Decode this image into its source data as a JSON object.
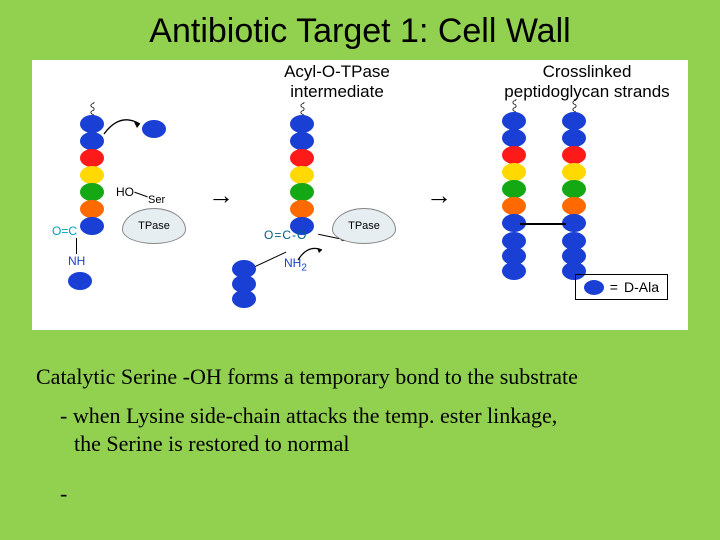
{
  "slide": {
    "background_color": "#92d050",
    "title": "Antibiotic Target 1: Cell Wall",
    "title_color": "#000000",
    "diagram_bg": "#ffffff"
  },
  "labels": {
    "panel2_line1": "Acyl-O-TPase",
    "panel2_line2": "intermediate",
    "panel3_line1": "Crosslinked",
    "panel3_line2": "peptidoglycan strands",
    "ser": "Ser",
    "ho": "HO",
    "tpase": "TPase",
    "nh": "NH",
    "nh2": "NH",
    "sub2": "2",
    "oco": "O=C-O",
    "oc": "O=C",
    "legend_eq": "=",
    "legend_txt": "D-Ala"
  },
  "text": {
    "line1": "Catalytic Serine -OH forms a temporary bond to the substrate",
    "line2a": "- when Lysine side-chain attacks the temp. ester linkage,",
    "line2b": "the Serine is restored to normal",
    "bullet": "-"
  },
  "colors": {
    "blue": "#1a3fd4",
    "orange": "#ff6a00",
    "green": "#14a814",
    "yellow": "#ffd900",
    "red": "#ff1a1a",
    "enzyme_fill": "#e6eef2",
    "arrow": "#000000"
  },
  "chain": {
    "bead_w": 24,
    "bead_h": 18,
    "gap": 17,
    "sequence": [
      "blue",
      "blue",
      "red",
      "yellow",
      "green",
      "orange",
      "blue"
    ]
  }
}
